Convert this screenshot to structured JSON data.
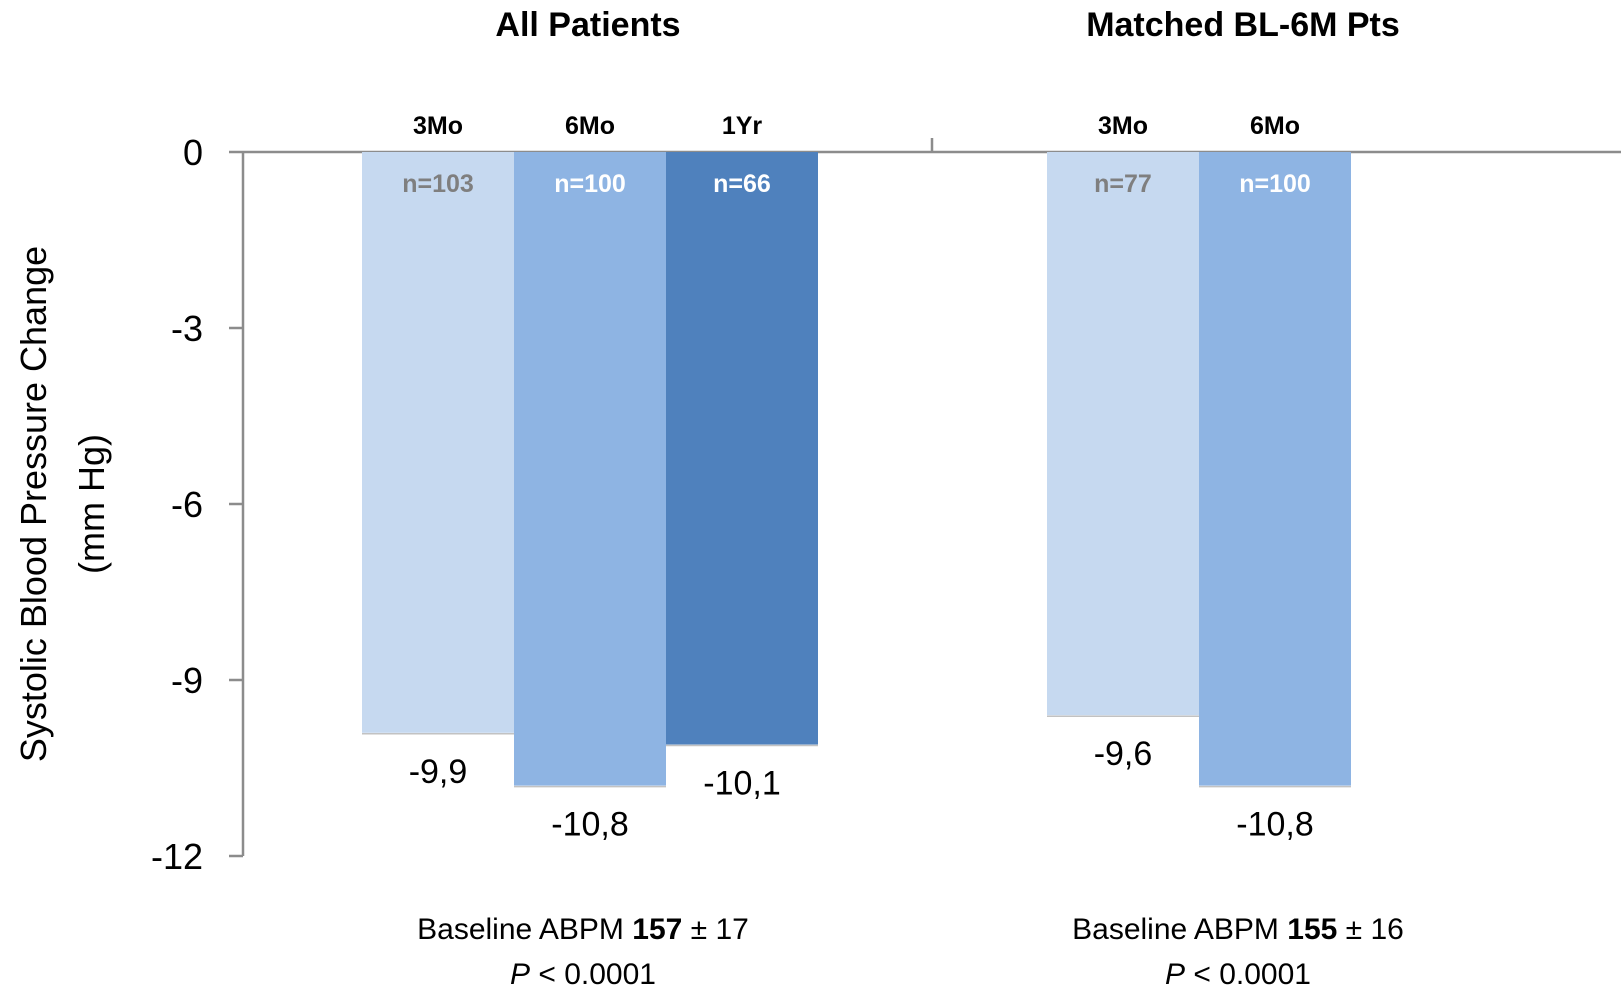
{
  "chart_data": {
    "type": "bar",
    "ylabel": [
      "Systolic Blood Pressure Change",
      "(mm Hg)"
    ],
    "ylim": [
      -12,
      0
    ],
    "yticks": [
      0,
      -3,
      -6,
      -9,
      -12
    ],
    "grid": false,
    "panels": [
      {
        "title": "All Patients",
        "categories": [
          "3Mo",
          "6Mo",
          "1Yr"
        ],
        "values": [
          -9.9,
          -10.8,
          -10.1
        ],
        "value_labels": [
          "-9,9",
          "-10,8",
          "-10,1"
        ],
        "n_labels": [
          "n=103",
          "n=100",
          "n=66"
        ],
        "colors": [
          "#c6d9f0",
          "#8eb4e3",
          "#4f81bd"
        ],
        "n_label_colors": [
          "#7f7f7f",
          "#ffffff",
          "#ffffff"
        ],
        "footnote": {
          "baseline_prefix": "Baseline ABPM ",
          "baseline_value": "157",
          "baseline_suffix": " ± 17",
          "p_italic": "P",
          "p_rest": " < 0.0001"
        }
      },
      {
        "title": "Matched BL-6M Pts",
        "categories": [
          "3Mo",
          "6Mo"
        ],
        "values": [
          -9.6,
          -10.8
        ],
        "value_labels": [
          "-9,6",
          "-10,8"
        ],
        "n_labels": [
          "n=77",
          "n=100"
        ],
        "colors": [
          "#c6d9f0",
          "#8eb4e3"
        ],
        "n_label_colors": [
          "#7f7f7f",
          "#ffffff"
        ],
        "footnote": {
          "baseline_prefix": "Baseline ABPM ",
          "baseline_value": "155",
          "baseline_suffix": " ± 16",
          "p_italic": "P",
          "p_rest": " < 0.0001"
        }
      }
    ]
  }
}
